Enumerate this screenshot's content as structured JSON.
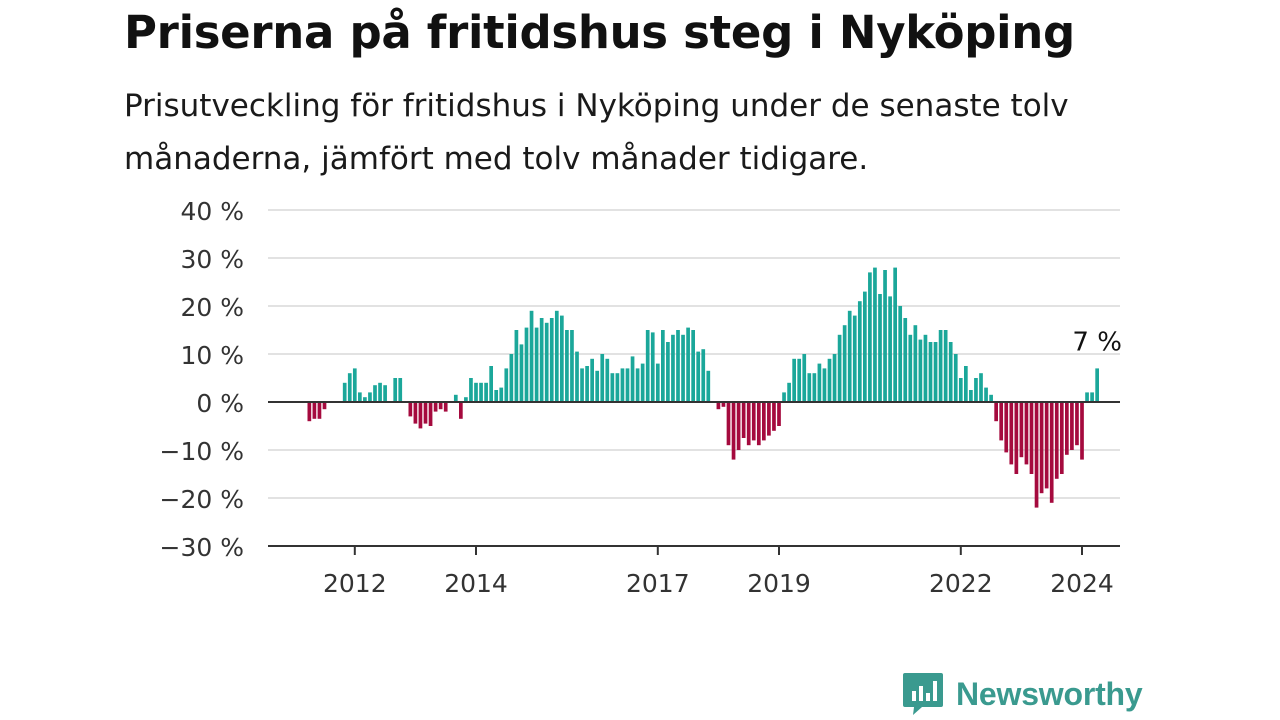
{
  "title": "Priserna på fritidshus steg i Nyköping",
  "subtitle": "Prisutveckling för fritidshus i Nyköping under de senaste tolv månaderna, jämfört med tolv månader tidigare.",
  "brand": {
    "name": "Newsworthy",
    "color": "#3a9a8f"
  },
  "colors": {
    "positive": "#1ba79a",
    "negative": "#a50a3e",
    "grid": "#d9d9d9",
    "zero_line": "#333333",
    "axis_text": "#333333"
  },
  "chart_data": {
    "type": "bar",
    "ylim": [
      -30,
      40
    ],
    "yticks": [
      40,
      30,
      20,
      10,
      0,
      -10,
      -20,
      -30
    ],
    "ytick_labels": [
      "40 %",
      "30 %",
      "20 %",
      "10 %",
      "0 %",
      "−10 %",
      "−20 %",
      "−30 %"
    ],
    "xticks": [
      {
        "label": "2012",
        "index": 9
      },
      {
        "label": "2014",
        "index": 33
      },
      {
        "label": "2017",
        "index": 69
      },
      {
        "label": "2019",
        "index": 93
      },
      {
        "label": "2022",
        "index": 129
      },
      {
        "label": "2024",
        "index": 153
      }
    ],
    "last_value_label": "7 %",
    "values": [
      -4.0,
      -3.5,
      -3.5,
      -1.5,
      0,
      0,
      0,
      4,
      6,
      7,
      2,
      1,
      2,
      3.5,
      4,
      3.5,
      0,
      5,
      5,
      0,
      -3,
      -4.5,
      -5.5,
      -4.5,
      -5,
      -2,
      -1.5,
      -2,
      0,
      1.5,
      -3.5,
      1,
      5,
      4,
      4,
      4,
      7.5,
      2.5,
      3,
      7,
      10,
      15,
      12,
      15.5,
      19,
      15.5,
      17.5,
      16.5,
      17.5,
      19,
      18,
      15,
      15,
      10.5,
      7,
      7.5,
      9,
      6.5,
      10,
      9,
      6,
      6,
      7,
      7,
      9.5,
      7,
      8,
      15,
      14.5,
      8,
      15,
      12.5,
      14,
      15,
      14,
      15.5,
      15,
      10.5,
      11,
      6.5,
      0,
      -1.5,
      -1,
      -9,
      -12,
      -10,
      -7.5,
      -9,
      -8,
      -9,
      -8,
      -7,
      -6,
      -5,
      2,
      4,
      9,
      9,
      10,
      6,
      6,
      8,
      7,
      9,
      10,
      14,
      16,
      19,
      18,
      21,
      23,
      27,
      28,
      22.5,
      27.5,
      22,
      28,
      20,
      17.5,
      14,
      16,
      13,
      14,
      12.5,
      12.5,
      15,
      15,
      12.5,
      10,
      5,
      7.5,
      2.5,
      5,
      6,
      3,
      1.5,
      -4,
      -8,
      -10.5,
      -13,
      -15,
      -11.5,
      -13,
      -15,
      -22,
      -19,
      -18,
      -21,
      -16,
      -15,
      -11,
      -10,
      -9,
      -12,
      2,
      2,
      7
    ]
  }
}
